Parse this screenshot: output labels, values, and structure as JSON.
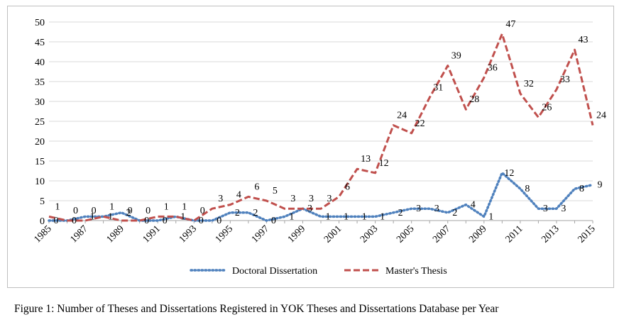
{
  "caption": "Figure 1: Number of Theses and Dissertations Registered in YOK Theses and Dissertations Database per Year",
  "chart_data": {
    "type": "line",
    "x": [
      1985,
      1986,
      1987,
      1988,
      1989,
      1990,
      1991,
      1992,
      1993,
      1994,
      1995,
      1996,
      1997,
      1998,
      1999,
      2000,
      2001,
      2002,
      2003,
      2004,
      2005,
      2006,
      2007,
      2008,
      2009,
      2010,
      2011,
      2012,
      2013,
      2014,
      2015
    ],
    "x_tick_labels": [
      "1985",
      "1987",
      "1989",
      "1991",
      "1993",
      "1995",
      "1997",
      "1999",
      "2001",
      "2003",
      "2005",
      "2007",
      "2009",
      "2011",
      "2013",
      "2015"
    ],
    "ylim": [
      0,
      50
    ],
    "y_ticks": [
      0,
      5,
      10,
      15,
      20,
      25,
      30,
      35,
      40,
      45,
      50
    ],
    "grid": "horizontal",
    "legend_position": "bottom",
    "series": [
      {
        "name": "Doctoral Dissertation",
        "color": "#4f81bd",
        "style": "dotted",
        "values": [
          0,
          0,
          1,
          1,
          2,
          0,
          0,
          1,
          0,
          0,
          2,
          2,
          0,
          1,
          3,
          1,
          1,
          1,
          1,
          2,
          3,
          3,
          2,
          4,
          1,
          12,
          8,
          3,
          3,
          8,
          9
        ],
        "data_labels": [
          "0",
          "0",
          "1",
          "1",
          "2",
          "0",
          "0",
          "1",
          "0",
          "0",
          "2",
          "2",
          "0",
          "1",
          "3",
          "1",
          "1",
          "1",
          "1",
          "2",
          "3",
          "3",
          "2",
          "4",
          "1",
          "12",
          "8",
          "3",
          "3",
          "8",
          "9"
        ]
      },
      {
        "name": "Master's Thesis",
        "color": "#c0504d",
        "style": "dashed",
        "values": [
          1,
          0,
          0,
          1,
          0,
          0,
          1,
          1,
          0,
          3,
          4,
          6,
          5,
          3,
          3,
          3,
          6,
          13,
          12,
          24,
          22,
          31,
          39,
          28,
          36,
          47,
          32,
          26,
          33,
          43,
          24
        ],
        "data_labels": [
          "1",
          "0",
          "0",
          "1",
          "0",
          "0",
          "1",
          "1",
          "0",
          "3",
          "4",
          "6",
          "5",
          "3",
          "3",
          "3",
          "6",
          "13",
          "12",
          "24",
          "22",
          "31",
          "39",
          "28",
          "36",
          "47",
          "32",
          "26",
          "33",
          "43",
          "24"
        ]
      }
    ]
  }
}
